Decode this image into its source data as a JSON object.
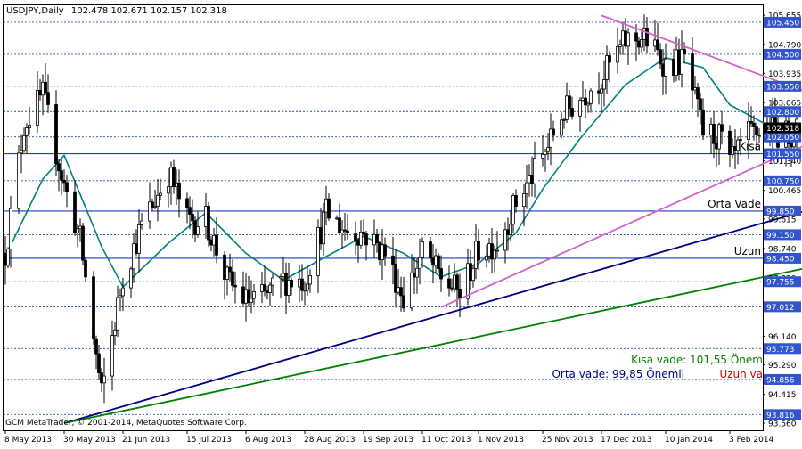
{
  "header": {
    "symbol": "USDJPY,Daily",
    "ohlc": "102.478 102.671 102.157 102.318"
  },
  "copyright": "GCM MetaTrader, © 2001-2014, MetaQuotes Software Corp.",
  "chart_data": {
    "type": "candlestick",
    "x_ticks": [
      "8 May 2013",
      "30 May 2013",
      "21 Jun 2013",
      "15 Jul 2013",
      "6 Aug 2013",
      "28 Aug 2013",
      "19 Sep 2013",
      "11 Oct 2013",
      "1 Nov 2013",
      "25 Nov 2013",
      "17 Dec 2013",
      "10 Jan 2014",
      "3 Feb 2014"
    ],
    "y_ticks": [
      "105.655",
      "104.790",
      "103.935",
      "103.065",
      "102.225",
      "101.340",
      "100.465",
      "99.615",
      "98.740",
      "97.870",
      "97.012",
      "96.140",
      "95.290",
      "94.415",
      "93.560"
    ],
    "ylim": [
      93.35,
      105.95
    ],
    "grid": false,
    "levels": [
      {
        "label": "105.450",
        "value": 105.45,
        "style": "dashed"
      },
      {
        "label": "104.500",
        "value": 104.5,
        "style": "dashed"
      },
      {
        "label": "103.550",
        "value": 103.55,
        "style": "dashed"
      },
      {
        "label": "102.800",
        "value": 102.8,
        "style": "dashed"
      },
      {
        "label": "102.050",
        "value": 102.05,
        "style": "dashed"
      },
      {
        "label": "101.550",
        "value": 101.55,
        "style": "solid"
      },
      {
        "label": "100.750",
        "value": 100.75,
        "style": "dashed"
      },
      {
        "label": "99.850",
        "value": 99.85,
        "style": "solid"
      },
      {
        "label": "99.150",
        "value": 99.15,
        "style": "dashed"
      },
      {
        "label": "98.450",
        "value": 98.45,
        "style": "solid"
      },
      {
        "label": "97.755",
        "value": 97.755,
        "style": "dashed"
      },
      {
        "label": "97.012",
        "value": 97.012,
        "style": "dashed"
      },
      {
        "label": "95.773",
        "value": 95.773,
        "style": "dashed"
      },
      {
        "label": "94.856",
        "value": 94.856,
        "style": "dashed"
      },
      {
        "label": "93.816",
        "value": 93.816,
        "style": "dashed"
      }
    ],
    "current_price": {
      "label": "102.318",
      "value": 102.318
    },
    "level_labels": [
      {
        "text": "Kısa",
        "level": 101.55
      },
      {
        "text": "Orta Vade",
        "level": 99.85
      },
      {
        "text": "Uzun",
        "level": 98.45
      }
    ],
    "trendlines": [
      {
        "name": "resistance",
        "color": "#cc66cc",
        "from": [
          "17 Dec 2013",
          105.65
        ],
        "to": [
          "3 Mar 2014",
          103.4
        ]
      },
      {
        "name": "support",
        "color": "#cc66cc",
        "from": [
          "18 Oct 2013",
          97.0
        ],
        "to": [
          "3 Mar 2014",
          101.8
        ]
      },
      {
        "name": "orta-vade",
        "color": "#000080",
        "from": [
          "30 May 2013",
          93.56
        ],
        "to": [
          "3 Mar 2014",
          99.85
        ]
      },
      {
        "name": "uzun-vade",
        "color": "#008000",
        "from": [
          "30 May 2013",
          93.56
        ],
        "to": [
          "3 Mar 2014",
          98.15
        ]
      }
    ],
    "series": [
      {
        "name": "price",
        "style": "candles",
        "color": "#000000"
      },
      {
        "name": "moving average",
        "style": "line",
        "color": "#008080"
      }
    ],
    "price_path": [
      {
        "date": "8 May 2013",
        "close": 98.6
      },
      {
        "date": "15 May 2013",
        "close": 102.4
      },
      {
        "date": "22 May 2013",
        "close": 103.3
      },
      {
        "date": "30 May 2013",
        "close": 100.6
      },
      {
        "date": "5 Jun 2013",
        "close": 99.0
      },
      {
        "date": "13 Jun 2013",
        "close": 94.4
      },
      {
        "date": "21 Jun 2013",
        "close": 97.9
      },
      {
        "date": "28 Jun 2013",
        "close": 99.4
      },
      {
        "date": "8 Jul 2013",
        "close": 101.0
      },
      {
        "date": "15 Jul 2013",
        "close": 99.6
      },
      {
        "date": "22 Jul 2013",
        "close": 99.6
      },
      {
        "date": "30 Jul 2013",
        "close": 97.8
      },
      {
        "date": "6 Aug 2013",
        "close": 97.2
      },
      {
        "date": "13 Aug 2013",
        "close": 97.3
      },
      {
        "date": "20 Aug 2013",
        "close": 97.8
      },
      {
        "date": "28 Aug 2013",
        "close": 97.8
      },
      {
        "date": "5 Sep 2013",
        "close": 99.8
      },
      {
        "date": "12 Sep 2013",
        "close": 99.3
      },
      {
        "date": "19 Sep 2013",
        "close": 99.2
      },
      {
        "date": "27 Sep 2013",
        "close": 98.6
      },
      {
        "date": "4 Oct 2013",
        "close": 97.3
      },
      {
        "date": "11 Oct 2013",
        "close": 98.6
      },
      {
        "date": "18 Oct 2013",
        "close": 97.9
      },
      {
        "date": "25 Oct 2013",
        "close": 97.4
      },
      {
        "date": "1 Nov 2013",
        "close": 98.7
      },
      {
        "date": "8 Nov 2013",
        "close": 98.9
      },
      {
        "date": "15 Nov 2013",
        "close": 100.1
      },
      {
        "date": "25 Nov 2013",
        "close": 101.4
      },
      {
        "date": "2 Dec 2013",
        "close": 102.7
      },
      {
        "date": "9 Dec 2013",
        "close": 103.2
      },
      {
        "date": "17 Dec 2013",
        "close": 103.8
      },
      {
        "date": "26 Dec 2013",
        "close": 104.9
      },
      {
        "date": "2 Jan 2014",
        "close": 105.0
      },
      {
        "date": "10 Jan 2014",
        "close": 104.2
      },
      {
        "date": "17 Jan 2014",
        "close": 104.3
      },
      {
        "date": "24 Jan 2014",
        "close": 102.2
      },
      {
        "date": "31 Jan 2014",
        "close": 102.0
      },
      {
        "date": "3 Feb 2014",
        "close": 101.2
      },
      {
        "date": "10 Feb 2014",
        "close": 102.1
      },
      {
        "date": "17 Feb 2014",
        "close": 102.3
      },
      {
        "date": "24 Feb 2014",
        "close": 102.1
      },
      {
        "date": "28 Feb 2014",
        "close": 102.3
      }
    ],
    "moving_average_path": [
      {
        "date": "8 May 2013",
        "value": 98.5
      },
      {
        "date": "22 May 2013",
        "value": 100.8
      },
      {
        "date": "30 May 2013",
        "value": 101.5
      },
      {
        "date": "13 Jun 2013",
        "value": 98.8
      },
      {
        "date": "21 Jun 2013",
        "value": 97.6
      },
      {
        "date": "8 Jul 2013",
        "value": 98.9
      },
      {
        "date": "22 Jul 2013",
        "value": 99.8
      },
      {
        "date": "6 Aug 2013",
        "value": 98.6
      },
      {
        "date": "20 Aug 2013",
        "value": 97.8
      },
      {
        "date": "5 Sep 2013",
        "value": 98.5
      },
      {
        "date": "19 Sep 2013",
        "value": 99.1
      },
      {
        "date": "4 Oct 2013",
        "value": 98.6
      },
      {
        "date": "18 Oct 2013",
        "value": 97.9
      },
      {
        "date": "1 Nov 2013",
        "value": 98.3
      },
      {
        "date": "15 Nov 2013",
        "value": 99.2
      },
      {
        "date": "25 Nov 2013",
        "value": 100.5
      },
      {
        "date": "9 Dec 2013",
        "value": 102.0
      },
      {
        "date": "26 Dec 2013",
        "value": 103.6
      },
      {
        "date": "10 Jan 2014",
        "value": 104.4
      },
      {
        "date": "24 Jan 2014",
        "value": 104.1
      },
      {
        "date": "3 Feb 2014",
        "value": 103.0
      },
      {
        "date": "17 Feb 2014",
        "value": 102.4
      },
      {
        "date": "28 Feb 2014",
        "value": 102.0
      }
    ],
    "annotations": [
      {
        "text": "Kısa vade: 101,55 Önem",
        "color": "#008000"
      },
      {
        "text": "Orta vade: 99,85 Önemli",
        "color": "#000080"
      },
      {
        "text": "Uzun va",
        "color": "#cc0000"
      }
    ]
  }
}
